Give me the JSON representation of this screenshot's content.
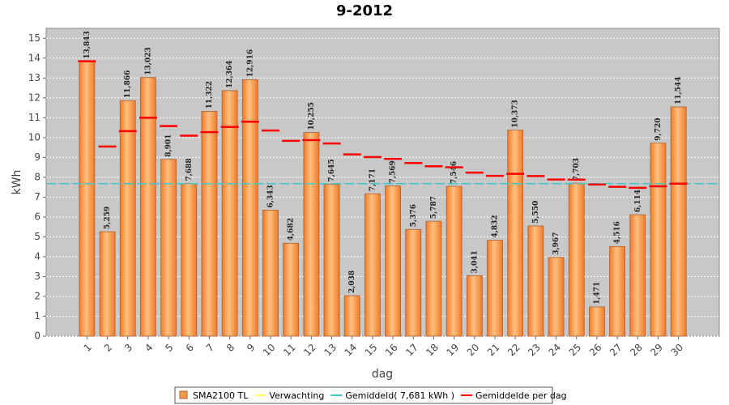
{
  "chart_data": {
    "type": "bar",
    "title": "9-2012",
    "x_label": "dag",
    "y_label": "kWh",
    "categories": [
      "1",
      "2",
      "3",
      "4",
      "5",
      "6",
      "7",
      "8",
      "9",
      "10",
      "11",
      "12",
      "13",
      "14",
      "15",
      "16",
      "17",
      "18",
      "19",
      "20",
      "21",
      "22",
      "23",
      "24",
      "25",
      "26",
      "27",
      "28",
      "29",
      "30"
    ],
    "series": [
      {
        "name": "SMA2100 TL",
        "type": "bar",
        "color": "#f79a46",
        "values": [
          13.843,
          5.259,
          11.866,
          13.023,
          8.901,
          7.688,
          11.322,
          12.364,
          12.916,
          6.343,
          4.682,
          10.255,
          7.645,
          2.038,
          7.171,
          7.569,
          5.376,
          5.787,
          7.546,
          3.041,
          4.832,
          10.373,
          5.55,
          3.967,
          7.703,
          1.471,
          4.516,
          6.114,
          9.72,
          11.544
        ],
        "value_labels": [
          "13,843",
          "5,259",
          "11,866",
          "13,023",
          "8,901",
          "7,688",
          "11,322",
          "12,364",
          "12,916",
          "6,343",
          "4,682",
          "10,255",
          "7,645",
          "2,038",
          "7,171",
          "7,569",
          "5,376",
          "5,787",
          "7,546",
          "3,041",
          "4,832",
          "10,373",
          "5,550",
          "3,967",
          "7,703",
          "1,471",
          "4,516",
          "6,114",
          "9,720",
          "11,544"
        ]
      },
      {
        "name": "Verwachting",
        "type": "line",
        "color": "#ffff66",
        "values": [
          null,
          null,
          null,
          null,
          null,
          null,
          null,
          null,
          null,
          null,
          null,
          null,
          null,
          null,
          null,
          null,
          null,
          null,
          null,
          null,
          null,
          null,
          null,
          null,
          null,
          null,
          null,
          null,
          null,
          null
        ]
      },
      {
        "name": "Gemiddeld( 7,681 kWh )",
        "type": "hline",
        "color": "#40c8c8",
        "value": 7.681
      },
      {
        "name": "Gemiddelde per dag",
        "type": "marker",
        "color": "#ff0000",
        "values": [
          13.843,
          9.551,
          10.323,
          10.998,
          10.578,
          10.097,
          10.272,
          10.533,
          10.798,
          10.353,
          9.837,
          9.872,
          9.701,
          9.153,
          9.021,
          8.93,
          8.721,
          8.558,
          8.505,
          8.232,
          8.07,
          8.175,
          8.06,
          7.89,
          7.882,
          7.636,
          7.52,
          7.47,
          7.548,
          7.681
        ]
      }
    ],
    "ylim": [
      0,
      15.5
    ],
    "yticks": [
      0,
      1,
      2,
      3,
      4,
      5,
      6,
      7,
      8,
      9,
      10,
      11,
      12,
      13,
      14,
      15
    ],
    "grid": true
  }
}
